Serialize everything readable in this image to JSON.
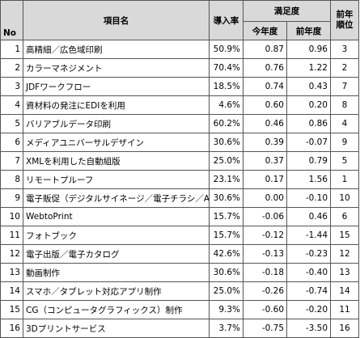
{
  "headers": {
    "no": "No",
    "item": "項目名",
    "rate": "導入率",
    "satisfaction": "満足度",
    "this_year": "今年度",
    "last_year": "前年度",
    "prev_rank": "前年順位"
  },
  "rows": [
    {
      "no": "1",
      "item": "高精細／広色域印刷",
      "rate": "50.9%",
      "this_year": "0.87",
      "last_year": "0.96",
      "prev_rank": "3"
    },
    {
      "no": "2",
      "item": "カラーマネジメント",
      "rate": "70.4%",
      "this_year": "0.76",
      "last_year": "1.22",
      "prev_rank": "2"
    },
    {
      "no": "3",
      "item": "JDFワークフロー",
      "rate": "18.5%",
      "this_year": "0.74",
      "last_year": "0.43",
      "prev_rank": "7"
    },
    {
      "no": "4",
      "item": "資材料の発注にEDIを利用",
      "rate": "4.6%",
      "this_year": "0.60",
      "last_year": "0.20",
      "prev_rank": "8"
    },
    {
      "no": "5",
      "item": "バリアブルデータ印刷",
      "rate": "60.2%",
      "this_year": "0.46",
      "last_year": "0.86",
      "prev_rank": "4"
    },
    {
      "no": "6",
      "item": "メディアユニバーサルデザイン",
      "rate": "30.6%",
      "this_year": "0.39",
      "last_year": "-0.07",
      "prev_rank": "9"
    },
    {
      "no": "7",
      "item": "XMLを利用した自動組版",
      "rate": "25.0%",
      "this_year": "0.37",
      "last_year": "0.79",
      "prev_rank": "5"
    },
    {
      "no": "8",
      "item": "リモートプルーフ",
      "rate": "23.1%",
      "this_year": "0.17",
      "last_year": "1.56",
      "prev_rank": "1"
    },
    {
      "no": "9",
      "item": "電子販促（デジタルサイネージ／電子チラシ／AR）",
      "rate": "30.6%",
      "this_year": "0.00",
      "last_year": "-0.10",
      "prev_rank": "10"
    },
    {
      "no": "10",
      "item": "WebtoPrint",
      "rate": "15.7%",
      "this_year": "-0.06",
      "last_year": "0.46",
      "prev_rank": "6"
    },
    {
      "no": "11",
      "item": "フォトブック",
      "rate": "15.7%",
      "this_year": "-0.12",
      "last_year": "-1.44",
      "prev_rank": "15"
    },
    {
      "no": "12",
      "item": "電子出版／電子カタログ",
      "rate": "42.6%",
      "this_year": "-0.13",
      "last_year": "-0.23",
      "prev_rank": "12"
    },
    {
      "no": "13",
      "item": "動画制作",
      "rate": "30.6%",
      "this_year": "-0.18",
      "last_year": "-0.40",
      "prev_rank": "13"
    },
    {
      "no": "14",
      "item": "スマホ／タブレット対応アプリ制作",
      "rate": "25.0%",
      "this_year": "-0.26",
      "last_year": "-0.74",
      "prev_rank": "14"
    },
    {
      "no": "15",
      "item": "CG（コンピュータグラフィックス）制作",
      "rate": "9.3%",
      "this_year": "-0.60",
      "last_year": "-0.20",
      "prev_rank": "11"
    },
    {
      "no": "16",
      "item": "3Dプリントサービス",
      "rate": "3.7%",
      "this_year": "-0.75",
      "last_year": "-3.50",
      "prev_rank": "16"
    }
  ]
}
